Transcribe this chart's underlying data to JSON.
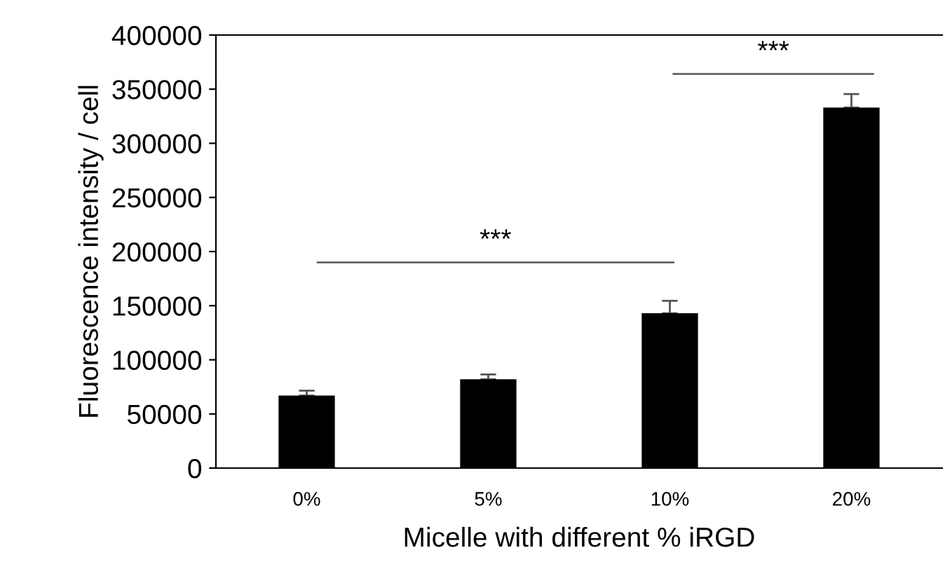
{
  "chart_data": {
    "type": "bar",
    "xlabel": "Micelle with different % iRGD",
    "ylabel": "Fluorescence intensity / cell",
    "categories": [
      "0%",
      "5%",
      "10%",
      "20%"
    ],
    "values": [
      67000,
      82000,
      143000,
      333000
    ],
    "errors": [
      4500,
      4500,
      11500,
      12500
    ],
    "color": "#000000",
    "ylim": [
      0,
      400000
    ],
    "yticks": [
      0,
      50000,
      100000,
      150000,
      200000,
      250000,
      300000,
      350000,
      400000
    ],
    "grid": false,
    "legend": false,
    "annotations": [
      "***",
      "***"
    ]
  }
}
